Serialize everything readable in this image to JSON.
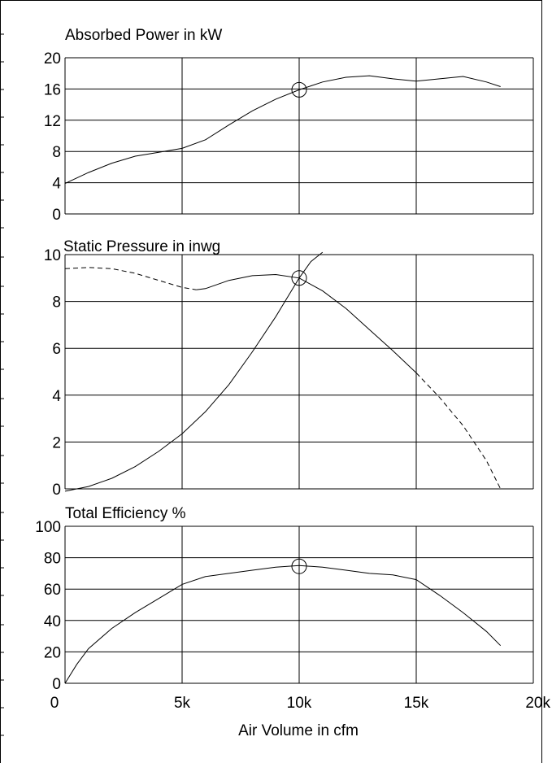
{
  "chart_data": [
    {
      "type": "line",
      "title": "Absorbed Power in kW",
      "xlim": [
        0,
        20000
      ],
      "ylim": [
        0,
        20
      ],
      "yticks": [
        0,
        4,
        8,
        12,
        16,
        20
      ],
      "grid": true,
      "series": [
        {
          "style": "solid",
          "x": [
            0,
            1000,
            2000,
            3000,
            4000,
            5000,
            6000,
            7000,
            8000,
            9000,
            10000,
            11000,
            12000,
            13000,
            14000,
            15000,
            16000,
            17000,
            18000,
            18600
          ],
          "y": [
            3.9,
            5.3,
            6.5,
            7.4,
            7.9,
            8.4,
            9.5,
            11.4,
            13.2,
            14.7,
            15.9,
            16.9,
            17.5,
            17.7,
            17.3,
            17.0,
            17.3,
            17.6,
            16.9,
            16.3
          ]
        }
      ],
      "operating_point": {
        "x": 10000,
        "y": 15.9
      }
    },
    {
      "type": "line",
      "title": "Static Pressure in inwg",
      "xlim": [
        0,
        20000
      ],
      "ylim": [
        0,
        10
      ],
      "yticks": [
        0,
        2,
        4,
        6,
        8,
        10
      ],
      "grid": true,
      "series": [
        {
          "style": "dashed",
          "x": [
            0,
            1000,
            2000,
            3000,
            4000,
            5000,
            5600
          ],
          "y": [
            9.4,
            9.45,
            9.4,
            9.2,
            8.9,
            8.6,
            8.5
          ]
        },
        {
          "style": "solid",
          "x": [
            5600,
            6000,
            7000,
            8000,
            9000,
            10000,
            11000,
            12000,
            13000,
            14000,
            15000
          ],
          "y": [
            8.5,
            8.55,
            8.9,
            9.1,
            9.15,
            9.0,
            8.45,
            7.7,
            6.8,
            5.9,
            4.95
          ]
        },
        {
          "style": "dashed",
          "x": [
            15000,
            16000,
            17000,
            18000,
            18600
          ],
          "y": [
            4.95,
            3.9,
            2.7,
            1.2,
            0
          ]
        },
        {
          "style": "solid",
          "x": [
            0,
            1000,
            2000,
            3000,
            4000,
            5000,
            6000,
            7000,
            8000,
            9000,
            10000,
            10500,
            11000
          ],
          "y": [
            -0.1,
            0.1,
            0.45,
            0.95,
            1.6,
            2.35,
            3.3,
            4.45,
            5.85,
            7.35,
            9.0,
            9.7,
            10.1
          ]
        }
      ],
      "operating_point": {
        "x": 10000,
        "y": 9.0
      }
    },
    {
      "type": "line",
      "title": "Total Efficiency %",
      "xlim": [
        0,
        20000
      ],
      "ylim": [
        0,
        100
      ],
      "yticks": [
        0,
        20,
        40,
        60,
        80,
        100
      ],
      "xticks": [
        0,
        5000,
        10000,
        15000,
        20000
      ],
      "xticklabels": [
        "0",
        "5k",
        "10k",
        "15k",
        "20k"
      ],
      "xlabel": "Air Volume in cfm",
      "grid": true,
      "series": [
        {
          "style": "solid",
          "x": [
            0,
            500,
            1000,
            2000,
            3000,
            4000,
            5000,
            6000,
            7000,
            8000,
            9000,
            10000,
            11000,
            12000,
            13000,
            14000,
            15000,
            16000,
            17000,
            18000,
            18600
          ],
          "y": [
            0,
            12,
            22,
            35,
            45,
            54,
            63,
            68,
            70,
            72,
            74,
            75,
            74,
            72,
            70,
            69,
            66,
            56,
            45,
            33,
            24
          ]
        }
      ],
      "operating_point": {
        "x": 10000,
        "y": 74.5
      }
    }
  ]
}
